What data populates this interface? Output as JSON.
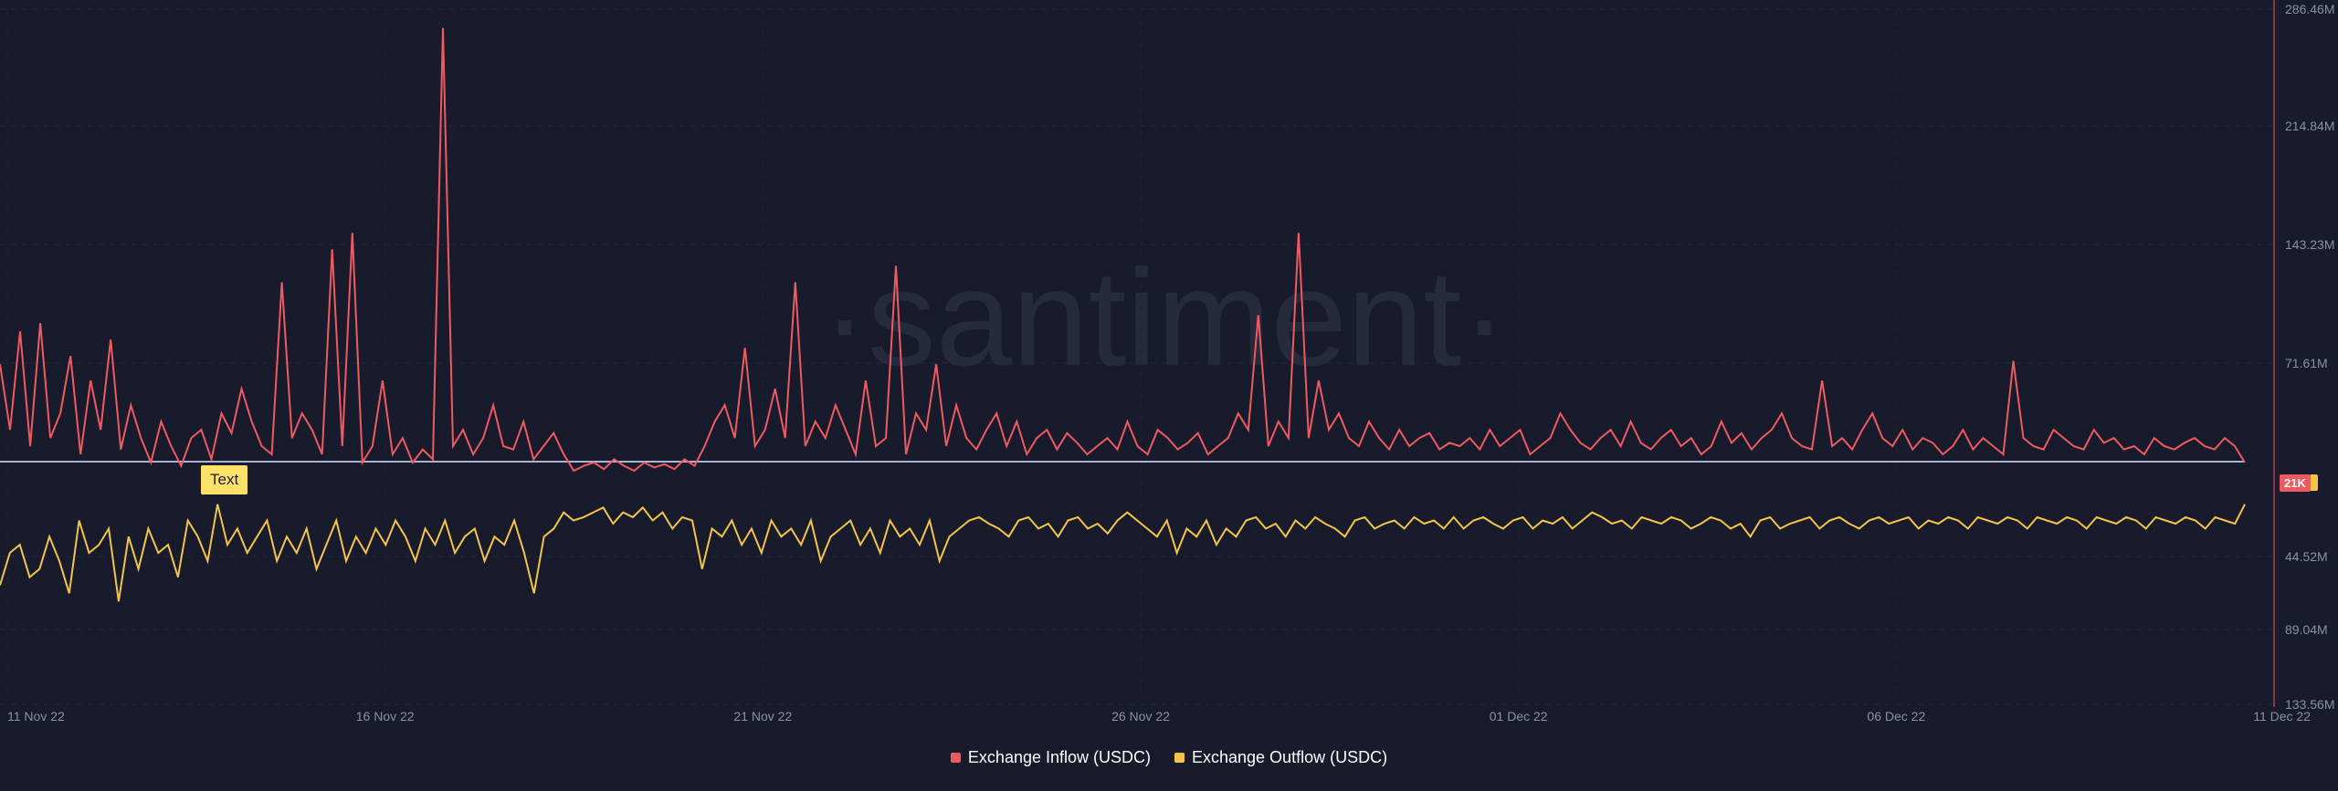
{
  "watermark": "·santiment·",
  "annotation_text": "Text",
  "value_badge": "21K",
  "colors": {
    "background": "#181b2b",
    "inflow": "#ef5a60",
    "outflow": "#f4c44a",
    "reference_line": "#a9b4d4",
    "axis_text": "#8a90a6"
  },
  "chart_data": {
    "type": "line",
    "x_start": "11 Nov 22",
    "x_end": "11 Dec 22",
    "x_ticks": [
      "11 Nov 22",
      "16 Nov 22",
      "21 Nov 22",
      "26 Nov 22",
      "01 Dec 22",
      "06 Dec 22",
      "11 Dec 22"
    ],
    "inflow_axis": {
      "ticks": [
        "286.46M",
        "214.84M",
        "143.23M",
        "71.61M"
      ],
      "range": [
        0,
        286.46
      ],
      "unit": "M USDC"
    },
    "outflow_axis": {
      "ticks": [
        "44.52M",
        "89.04M",
        "133.56M"
      ],
      "range_inverted": [
        0,
        133.56
      ],
      "unit": "M USDC"
    },
    "legend": [
      "Exchange Inflow (USDC)",
      "Exchange Outflow (USDC)"
    ],
    "series": [
      {
        "name": "Exchange Inflow (USDC)",
        "values": [
          70,
          30,
          90,
          20,
          95,
          25,
          40,
          75,
          15,
          60,
          30,
          85,
          18,
          45,
          25,
          10,
          35,
          20,
          8,
          25,
          30,
          12,
          40,
          28,
          55,
          35,
          20,
          15,
          120,
          25,
          40,
          30,
          15,
          140,
          20,
          150,
          10,
          20,
          60,
          15,
          25,
          10,
          18,
          12,
          275,
          20,
          30,
          15,
          25,
          45,
          20,
          18,
          35,
          12,
          20,
          28,
          15,
          5,
          8,
          10,
          6,
          12,
          8,
          5,
          10,
          7,
          9,
          6,
          12,
          8,
          20,
          35,
          45,
          25,
          80,
          20,
          30,
          55,
          25,
          120,
          20,
          35,
          25,
          45,
          30,
          15,
          60,
          20,
          25,
          130,
          15,
          40,
          30,
          70,
          20,
          45,
          25,
          18,
          30,
          40,
          20,
          35,
          15,
          25,
          30,
          18,
          28,
          22,
          15,
          20,
          25,
          18,
          35,
          20,
          15,
          30,
          25,
          18,
          22,
          28,
          15,
          20,
          25,
          40,
          30,
          100,
          20,
          35,
          25,
          150,
          25,
          60,
          30,
          40,
          25,
          20,
          35,
          25,
          18,
          30,
          20,
          25,
          28,
          18,
          22,
          20,
          25,
          18,
          30,
          20,
          25,
          30,
          15,
          20,
          25,
          40,
          30,
          22,
          18,
          25,
          30,
          20,
          35,
          22,
          18,
          25,
          30,
          20,
          25,
          15,
          20,
          35,
          22,
          28,
          18,
          25,
          30,
          40,
          25,
          20,
          18,
          60,
          20,
          25,
          18,
          30,
          40,
          25,
          20,
          30,
          18,
          25,
          22,
          15,
          20,
          30,
          18,
          25,
          20,
          15,
          72,
          25,
          20,
          18,
          30,
          25,
          20,
          18,
          30,
          22,
          25,
          18,
          20,
          15,
          25,
          20,
          18,
          22,
          25,
          20,
          18,
          25,
          20,
          10
        ],
        "axis": "left"
      },
      {
        "name": "Exchange Outflow (USDC)",
        "values": [
          60,
          40,
          35,
          55,
          50,
          30,
          45,
          65,
          20,
          40,
          35,
          25,
          70,
          30,
          50,
          25,
          40,
          35,
          55,
          20,
          30,
          45,
          10,
          35,
          25,
          40,
          30,
          20,
          45,
          30,
          40,
          25,
          50,
          35,
          20,
          45,
          30,
          40,
          25,
          35,
          20,
          30,
          45,
          25,
          35,
          20,
          40,
          30,
          25,
          45,
          30,
          35,
          20,
          40,
          65,
          30,
          25,
          15,
          20,
          18,
          15,
          12,
          22,
          15,
          18,
          12,
          20,
          15,
          25,
          18,
          20,
          50,
          25,
          30,
          20,
          35,
          25,
          40,
          20,
          30,
          25,
          35,
          20,
          45,
          30,
          25,
          20,
          35,
          25,
          40,
          20,
          30,
          25,
          35,
          20,
          45,
          30,
          25,
          20,
          18,
          22,
          25,
          30,
          20,
          18,
          25,
          22,
          30,
          20,
          18,
          25,
          22,
          28,
          20,
          15,
          20,
          25,
          30,
          20,
          40,
          25,
          30,
          20,
          35,
          25,
          30,
          20,
          18,
          25,
          22,
          30,
          20,
          25,
          18,
          22,
          25,
          30,
          20,
          18,
          25,
          22,
          20,
          25,
          18,
          22,
          20,
          25,
          18,
          25,
          20,
          18,
          22,
          25,
          20,
          18,
          25,
          20,
          22,
          18,
          25,
          20,
          15,
          18,
          22,
          20,
          25,
          18,
          20,
          22,
          18,
          20,
          25,
          22,
          18,
          20,
          25,
          22,
          30,
          20,
          18,
          25,
          22,
          20,
          18,
          25,
          20,
          18,
          22,
          25,
          20,
          18,
          22,
          20,
          18,
          25,
          20,
          22,
          18,
          20,
          25,
          18,
          20,
          22,
          18,
          20,
          25,
          18,
          20,
          22,
          18,
          20,
          25,
          18,
          20,
          22,
          18,
          20,
          25,
          18,
          20,
          22,
          18,
          20,
          25,
          18,
          20,
          22,
          10
        ],
        "axis": "right-inverted"
      }
    ],
    "reference_line_value": 21,
    "grid": true
  }
}
